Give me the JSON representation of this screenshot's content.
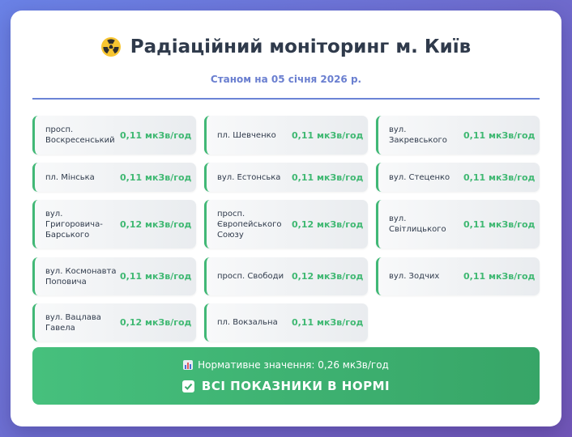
{
  "header": {
    "title": "Радіаційний моніторинг м. Київ",
    "subtitle": "Станом на 05 січня 2026 р.",
    "icon": "radiation-icon"
  },
  "readings": [
    {
      "location": "просп. Воскресенський",
      "value": "0,11 мкЗв/год"
    },
    {
      "location": "пл. Шевченко",
      "value": "0,11 мкЗв/год"
    },
    {
      "location": "вул. Закревського",
      "value": "0,11 мкЗв/год"
    },
    {
      "location": "пл. Мінська",
      "value": "0,11 мкЗв/год"
    },
    {
      "location": "вул. Естонська",
      "value": "0,11 мкЗв/год"
    },
    {
      "location": "вул. Стеценко",
      "value": "0,11 мкЗв/год"
    },
    {
      "location": "вул. Григоровича-Барського",
      "value": "0,12 мкЗв/год"
    },
    {
      "location": "просп. Європейського Союзу",
      "value": "0,12 мкЗв/год"
    },
    {
      "location": "вул. Світлицького",
      "value": "0,11 мкЗв/год"
    },
    {
      "location": "вул. Космонавта Поповича",
      "value": "0,11 мкЗв/год"
    },
    {
      "location": "просп. Свободи",
      "value": "0,12 мкЗв/год"
    },
    {
      "location": "вул. Зодчих",
      "value": "0,11 мкЗв/год"
    },
    {
      "location": "вул. Вацлава Гавела",
      "value": "0,12 мкЗв/год"
    },
    {
      "location": "пл. Вокзальна",
      "value": "0,11 мкЗв/год"
    }
  ],
  "status": {
    "norm_text": "Нормативне значення: 0,26 мкЗв/год",
    "norm_icon": "bar-chart-icon",
    "ok_text": "ВСІ ПОКАЗНИКИ В НОРМІ",
    "ok_icon": "check-mark-icon"
  },
  "colors": {
    "accent": "#6a7fd0",
    "value_green": "#3fb872",
    "status_green": "#40b573"
  }
}
